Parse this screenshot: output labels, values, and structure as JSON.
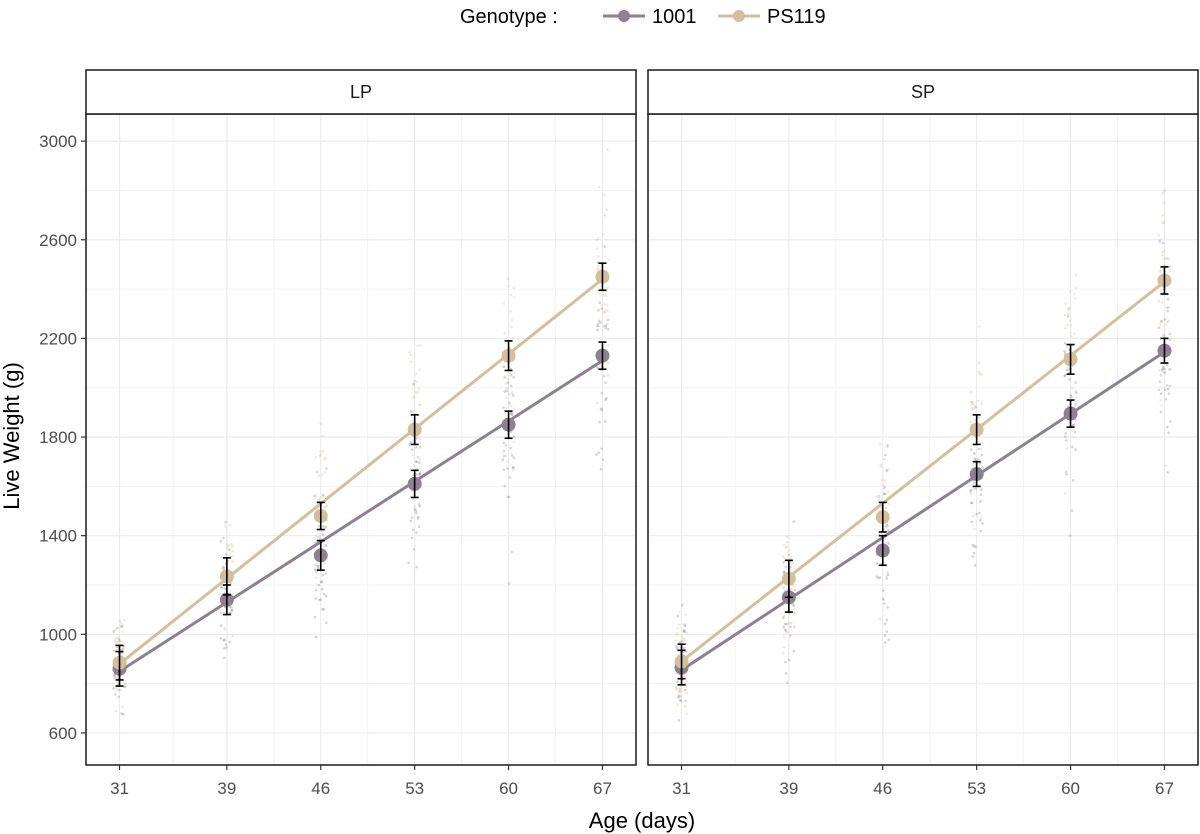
{
  "chart_data": {
    "type": "line",
    "legend": {
      "title": "Genotype :",
      "placement": "top"
    },
    "xlabel": "Age (days)",
    "ylabel": "Live Weight (g)",
    "x": [
      31,
      39,
      46,
      53,
      60,
      67
    ],
    "xlim": [
      28.5,
      69.5
    ],
    "ylim": [
      470,
      3110
    ],
    "yticks": [
      600,
      1000,
      1400,
      1800,
      2200,
      2600,
      3000
    ],
    "grid": true,
    "colors": {
      "1001": "#8e7f91",
      "PS119": "#d3bf9c"
    },
    "panels": [
      {
        "name": "LP",
        "series": [
          {
            "name": "1001",
            "means": [
              860,
              1140,
              1320,
              1610,
              1850,
              2130
            ],
            "ci": [
              70,
              60,
              60,
              55,
              55,
              55
            ],
            "fit": [
              850,
              2110
            ]
          },
          {
            "name": "PS119",
            "means": [
              885,
              1235,
              1480,
              1830,
              2130,
              2450
            ],
            "ci": [
              70,
              75,
              55,
              60,
              60,
              55
            ],
            "fit": [
              880,
              2440
            ]
          }
        ]
      },
      {
        "name": "SP",
        "series": [
          {
            "name": "1001",
            "means": [
              865,
              1150,
              1340,
              1650,
              1895,
              2150
            ],
            "ci": [
              70,
              60,
              60,
              50,
              55,
              50
            ],
            "fit": [
              855,
              2145
            ]
          },
          {
            "name": "PS119",
            "means": [
              890,
              1225,
              1475,
              1830,
              2115,
              2435
            ],
            "ci": [
              70,
              75,
              60,
              60,
              60,
              55
            ],
            "fit": [
              890,
              2430
            ]
          }
        ]
      }
    ]
  }
}
